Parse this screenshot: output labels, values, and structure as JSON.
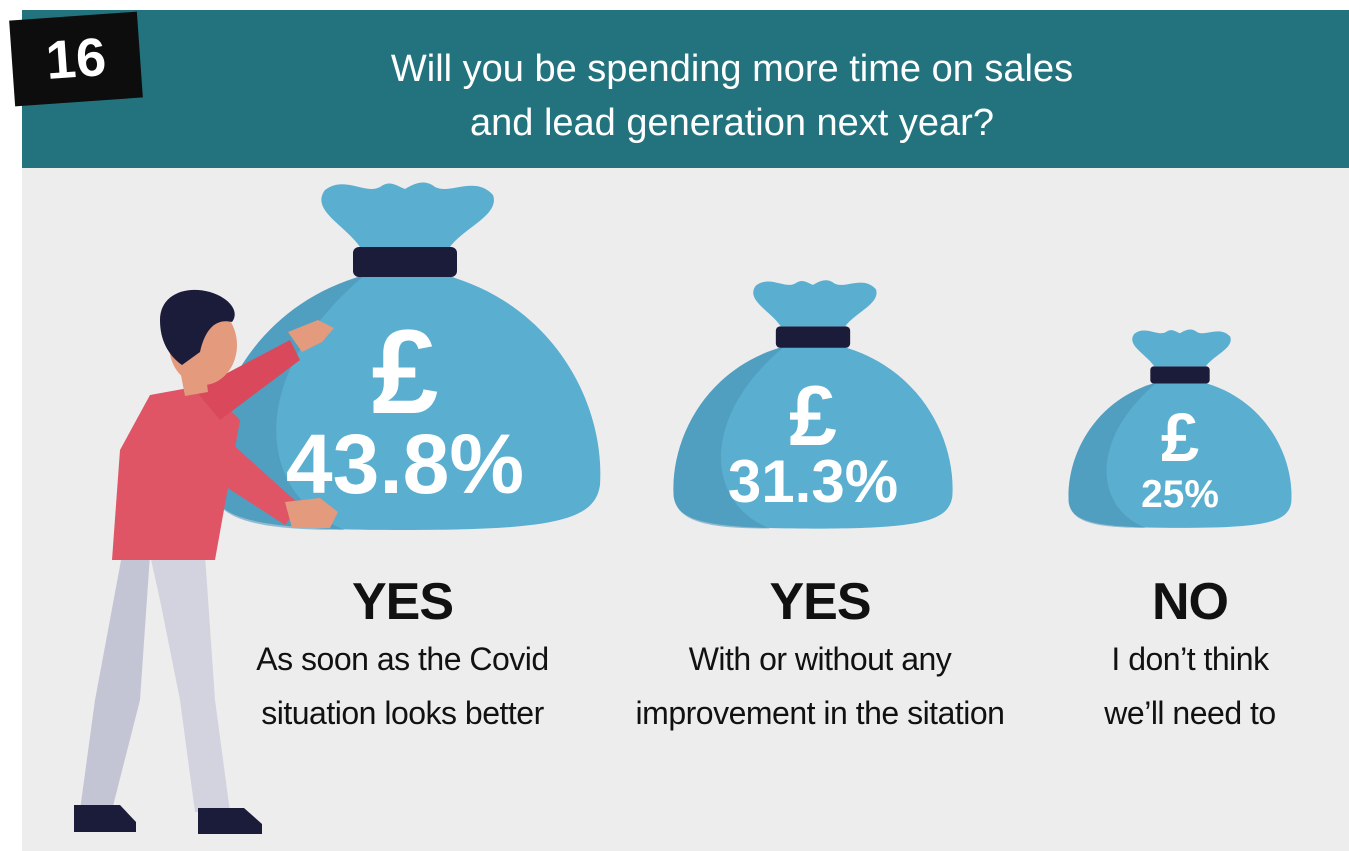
{
  "badge": "16",
  "title_lines": [
    "Will you be spending more time on sales",
    "and lead generation next year?"
  ],
  "colors": {
    "header": "#23737f",
    "panel": "#ededee",
    "bag": "#5aaecf",
    "bag_dark": "#4892b5",
    "bag_tie": "#1b1b3a",
    "shirt": "#e05565",
    "skin": "#e39a7d",
    "hair": "#1b1b3a",
    "trousers": "#d2d3de"
  },
  "icons": [
    "pound-sign-icon",
    "money-bag-icon",
    "person-illustration"
  ],
  "chart_data": {
    "type": "bar",
    "categories": [
      "YES",
      "YES",
      "NO"
    ],
    "descriptions": [
      [
        "As soon as the Covid",
        "situation looks better"
      ],
      [
        "With or without any",
        "improvement in the sitation"
      ],
      [
        "I don’t think",
        "we’ll need to"
      ]
    ],
    "values": [
      43.8,
      31.3,
      25
    ],
    "value_labels": [
      "43.8%",
      "31.3%",
      "25%"
    ],
    "unit": "%"
  }
}
